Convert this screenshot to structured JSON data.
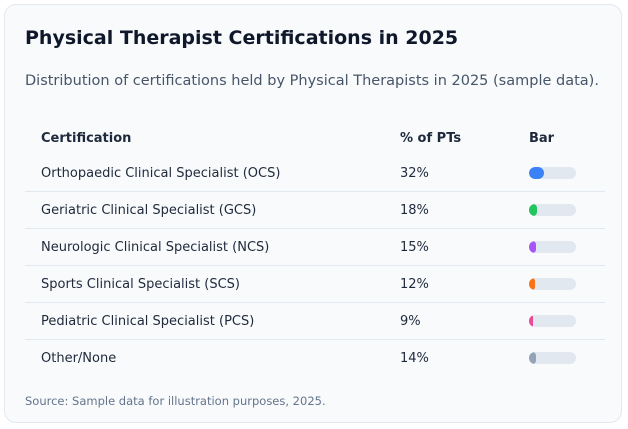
{
  "title": "Physical Therapist Certifications in 2025",
  "subtitle": "Distribution of certifications held by Physical Therapists in 2025 (sample data).",
  "table": {
    "headers": [
      "Certification",
      "% of PTs",
      "Bar"
    ],
    "rows": [
      {
        "name": "Orthopaedic Clinical Specialist (OCS)",
        "pct": "32%",
        "value": 32,
        "color": "#3b82f6"
      },
      {
        "name": "Geriatric Clinical Specialist (GCS)",
        "pct": "18%",
        "value": 18,
        "color": "#22c55e"
      },
      {
        "name": "Neurologic Clinical Specialist (NCS)",
        "pct": "15%",
        "value": 15,
        "color": "#a855f7"
      },
      {
        "name": "Sports Clinical Specialist (SCS)",
        "pct": "12%",
        "value": 12,
        "color": "#f97316"
      },
      {
        "name": "Pediatric Clinical Specialist (PCS)",
        "pct": "9%",
        "value": 9,
        "color": "#ec4899"
      },
      {
        "name": "Other/None",
        "pct": "14%",
        "value": 14,
        "color": "#94a3b8"
      }
    ]
  },
  "source": "Source: Sample data for illustration purposes, 2025."
}
